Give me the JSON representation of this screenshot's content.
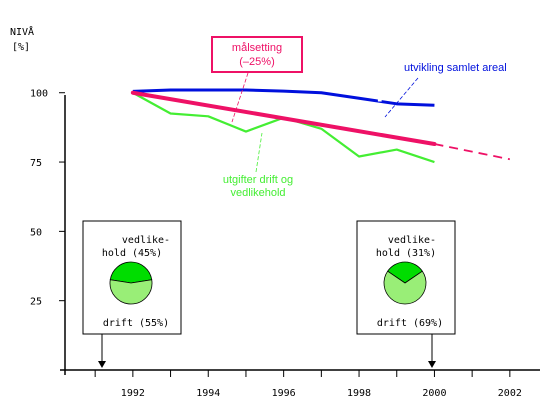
{
  "chart_data": {
    "type": "line",
    "ylabel": "NIVÅ",
    "yunit": "[%]",
    "yticks": [
      25,
      50,
      75,
      100
    ],
    "xticks": [
      1992,
      1994,
      1996,
      1998,
      2000,
      2002
    ],
    "xlim": [
      1990.2,
      2002.8
    ],
    "ylim": [
      0,
      110
    ],
    "series": [
      {
        "name": "utvikling samlet areal",
        "color": "#0010dd",
        "points": [
          [
            1992,
            100.5
          ],
          [
            1993,
            101
          ],
          [
            1994,
            101
          ],
          [
            1995,
            101
          ],
          [
            1996,
            100.6
          ],
          [
            1997,
            100
          ],
          [
            1998,
            98
          ],
          [
            1999,
            96
          ],
          [
            2000,
            95.5
          ]
        ],
        "gaps": [
          [
            1998.5,
            1998.6
          ]
        ]
      },
      {
        "name": "målsetting (–25%)",
        "color": "#ee1166",
        "points": [
          [
            1992,
            100
          ],
          [
            2000,
            81.5
          ]
        ],
        "dashed_extension": [
          [
            2000,
            81.5
          ],
          [
            2002,
            76
          ]
        ]
      },
      {
        "name": "utgifter drift og vedlikehold",
        "color": "#44ee33",
        "points": [
          [
            1992,
            100
          ],
          [
            1993,
            92.5
          ],
          [
            1994,
            91.5
          ],
          [
            1995,
            86
          ],
          [
            1996,
            91
          ],
          [
            1997,
            87
          ],
          [
            1998,
            77
          ],
          [
            1999,
            79.5
          ],
          [
            2000,
            75
          ]
        ]
      }
    ],
    "labels": {
      "target_line1": "målsetting",
      "target_line2": "(–25%)",
      "area": "utvikling samlet areal",
      "costs_line1": "utgifter drift og",
      "costs_line2": "vedlikehold"
    },
    "insets": [
      {
        "year": 1992,
        "top_line1": "vedlike-",
        "top_line2": "hold (45%)",
        "bottom": "drift (55%)",
        "values": [
          45,
          55
        ],
        "slice_colors": [
          "#00dd00",
          "#99ee77"
        ]
      },
      {
        "year": 2000,
        "top_line1": "vedlike-",
        "top_line2": "hold (31%)",
        "bottom": "drift (69%)",
        "values": [
          31,
          69
        ],
        "slice_colors": [
          "#00dd00",
          "#99ee77"
        ]
      }
    ]
  }
}
